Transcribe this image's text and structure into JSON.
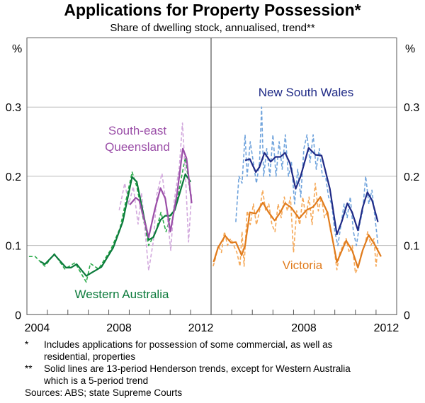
{
  "chart_data": [
    {
      "type": "line",
      "title": "Applications for Property Possession*",
      "subtitle": "Share of dwelling stock, annualised, trend**",
      "ylabel": "%",
      "xlim": [
        2004,
        2013
      ],
      "ylim": [
        0,
        0.4
      ],
      "yticks": [
        "0",
        "0.1",
        "0.2",
        "0.3"
      ],
      "xticks": [
        "2004",
        "2008",
        "2012"
      ],
      "grid": true,
      "series": [
        {
          "name": "Western Australia",
          "style": "trend",
          "color": "#0b7a3b",
          "x": [
            2004.65,
            2004.88,
            2005.34,
            2005.91,
            2006.15,
            2006.43,
            2006.9,
            2007.18,
            2007.64,
            2008.22,
            2008.68,
            2009.14,
            2009.37,
            2009.95,
            2010.18,
            2010.53,
            2010.76,
            2010.99,
            2011.22,
            2011.74,
            2012.0
          ],
          "y": [
            0.077,
            0.073,
            0.087,
            0.068,
            0.068,
            0.073,
            0.056,
            0.061,
            0.069,
            0.097,
            0.134,
            0.199,
            0.192,
            0.108,
            0.112,
            0.137,
            0.143,
            0.143,
            0.151,
            0.203,
            0.192
          ]
        },
        {
          "name": "Western Australia",
          "style": "raw",
          "color": "#2bab4a",
          "x": [
            2004.1,
            2004.4,
            2004.88,
            2005.34,
            2005.85,
            2006.35,
            2006.9,
            2007.1,
            2007.5,
            2008.1,
            2008.55,
            2009.14,
            2009.37,
            2009.95,
            2010.3,
            2010.55,
            2010.8,
            2011.0,
            2011.3,
            2011.74,
            2012.0
          ],
          "y": [
            0.084,
            0.084,
            0.07,
            0.088,
            0.066,
            0.075,
            0.047,
            0.074,
            0.066,
            0.094,
            0.125,
            0.206,
            0.185,
            0.1,
            0.12,
            0.148,
            0.12,
            0.14,
            0.16,
            0.227,
            0.172
          ]
        },
        {
          "name": "South-east Queensland",
          "style": "trend",
          "color": "#9b4fa8",
          "x": [
            2009.03,
            2009.32,
            2009.49,
            2009.95,
            2010.24,
            2010.53,
            2010.76,
            2011.01,
            2011.34,
            2011.62,
            2011.8,
            2012.05
          ],
          "y": [
            0.159,
            0.169,
            0.165,
            0.112,
            0.151,
            0.183,
            0.168,
            0.12,
            0.175,
            0.24,
            0.226,
            0.161
          ]
        },
        {
          "name": "South-east Queensland",
          "style": "raw",
          "color": "#d2a9dd",
          "x": [
            2008.51,
            2008.78,
            2008.98,
            2009.2,
            2009.43,
            2009.6,
            2009.95,
            2010.18,
            2010.35,
            2010.6,
            2010.8,
            2011.03,
            2011.2,
            2011.45,
            2011.6,
            2011.75,
            2011.9,
            2012.05
          ],
          "y": [
            0.151,
            0.19,
            0.16,
            0.185,
            0.131,
            0.176,
            0.064,
            0.106,
            0.174,
            0.204,
            0.16,
            0.093,
            0.165,
            0.214,
            0.277,
            0.2,
            0.105,
            0.177
          ]
        }
      ]
    },
    {
      "type": "line",
      "ylabel": "%",
      "xlim": [
        2004,
        2013
      ],
      "ylim": [
        0,
        0.4
      ],
      "yticks": [
        "0",
        "0.1",
        "0.2",
        "0.3"
      ],
      "xticks": [
        "2008",
        "2012"
      ],
      "grid": true,
      "series": [
        {
          "name": "New South Wales",
          "style": "trend",
          "color": "#1f2a86",
          "x": [
            2005.65,
            2005.88,
            2006.17,
            2006.34,
            2006.59,
            2006.89,
            2007.13,
            2007.36,
            2007.59,
            2007.82,
            2008.1,
            2008.33,
            2008.73,
            2009.07,
            2009.36,
            2009.76,
            2010.1,
            2010.33,
            2010.61,
            2010.84,
            2011.12,
            2011.35,
            2011.58,
            2011.81,
            2012.09
          ],
          "y": [
            0.223,
            0.225,
            0.206,
            0.213,
            0.234,
            0.221,
            0.228,
            0.228,
            0.234,
            0.219,
            0.182,
            0.199,
            0.241,
            0.231,
            0.23,
            0.182,
            0.116,
            0.134,
            0.161,
            0.148,
            0.122,
            0.155,
            0.177,
            0.165,
            0.134
          ]
        },
        {
          "name": "New South Wales",
          "style": "raw",
          "color": "#6fa3dc",
          "x": [
            2005.2,
            2005.35,
            2005.5,
            2005.65,
            2005.75,
            2005.9,
            2006.05,
            2006.2,
            2006.35,
            2006.45,
            2006.55,
            2006.7,
            2006.85,
            2007.0,
            2007.15,
            2007.3,
            2007.45,
            2007.6,
            2007.75,
            2007.9,
            2008.05,
            2008.2,
            2008.35,
            2008.5,
            2008.65,
            2008.8,
            2008.95,
            2009.1,
            2009.25,
            2009.4,
            2009.55,
            2009.7,
            2009.85,
            2010.0,
            2010.15,
            2010.3,
            2010.45,
            2010.6,
            2010.75,
            2010.9,
            2011.05,
            2011.2,
            2011.35,
            2011.5,
            2011.65,
            2011.8,
            2011.95,
            2012.1
          ],
          "y": [
            0.134,
            0.2,
            0.19,
            0.26,
            0.2,
            0.25,
            0.22,
            0.19,
            0.22,
            0.3,
            0.2,
            0.24,
            0.2,
            0.26,
            0.2,
            0.25,
            0.21,
            0.26,
            0.2,
            0.22,
            0.16,
            0.21,
            0.17,
            0.24,
            0.26,
            0.22,
            0.26,
            0.21,
            0.24,
            0.2,
            0.2,
            0.17,
            0.16,
            0.12,
            0.1,
            0.13,
            0.16,
            0.14,
            0.17,
            0.12,
            0.1,
            0.13,
            0.15,
            0.2,
            0.16,
            0.18,
            0.14,
            0.1
          ]
        },
        {
          "name": "Victoria",
          "style": "trend",
          "color": "#e07b1c",
          "x": [
            2004.12,
            2004.34,
            2004.68,
            2004.97,
            2005.2,
            2005.48,
            2005.65,
            2005.88,
            2006.17,
            2006.51,
            2006.79,
            2007.08,
            2007.36,
            2007.59,
            2007.88,
            2008.27,
            2008.62,
            2008.96,
            2009.3,
            2009.64,
            2010.1,
            2010.55,
            2010.84,
            2011.12,
            2011.35,
            2011.64,
            2011.92,
            2012.24
          ],
          "y": [
            0.076,
            0.097,
            0.114,
            0.104,
            0.105,
            0.086,
            0.1,
            0.148,
            0.146,
            0.162,
            0.148,
            0.136,
            0.148,
            0.161,
            0.155,
            0.139,
            0.151,
            0.156,
            0.17,
            0.148,
            0.076,
            0.107,
            0.093,
            0.068,
            0.093,
            0.115,
            0.102,
            0.084
          ]
        },
        {
          "name": "Victoria",
          "style": "raw",
          "color": "#f5a857",
          "x": [
            2004.1,
            2004.2,
            2004.35,
            2004.5,
            2004.65,
            2004.8,
            2004.95,
            2005.1,
            2005.25,
            2005.4,
            2005.5,
            2005.6,
            2005.75,
            2005.9,
            2006.05,
            2006.2,
            2006.35,
            2006.5,
            2006.65,
            2006.8,
            2006.95,
            2007.1,
            2007.25,
            2007.4,
            2007.55,
            2007.7,
            2007.85,
            2008.0,
            2008.15,
            2008.3,
            2008.45,
            2008.6,
            2008.75,
            2008.9,
            2009.05,
            2009.2,
            2009.35,
            2009.5,
            2009.65,
            2009.8,
            2009.95,
            2010.1,
            2010.25,
            2010.4,
            2010.55,
            2010.7,
            2010.85,
            2011.0,
            2011.15,
            2011.3,
            2011.45,
            2011.6,
            2011.75,
            2011.9,
            2012.0,
            2012.1
          ],
          "y": [
            0.07,
            0.08,
            0.1,
            0.09,
            0.12,
            0.1,
            0.11,
            0.1,
            0.09,
            0.07,
            0.12,
            0.07,
            0.15,
            0.13,
            0.16,
            0.13,
            0.15,
            0.18,
            0.15,
            0.16,
            0.13,
            0.12,
            0.16,
            0.14,
            0.17,
            0.15,
            0.17,
            0.09,
            0.15,
            0.13,
            0.17,
            0.14,
            0.17,
            0.13,
            0.19,
            0.15,
            0.17,
            0.14,
            0.15,
            0.12,
            0.1,
            0.065,
            0.09,
            0.1,
            0.11,
            0.09,
            0.1,
            0.06,
            0.07,
            0.09,
            0.1,
            0.12,
            0.1,
            0.11,
            0.07,
            0.1
          ]
        }
      ]
    }
  ],
  "labels": {
    "seq_line1": "South-east",
    "seq_line2": "Queensland",
    "wa": "Western Australia",
    "nsw": "New South Wales",
    "vic": "Victoria"
  },
  "footnotes": {
    "note1_marker": "*",
    "note1_line1": "Includes applications for possession of some commercial, as well as",
    "note1_line2": "residential, properties",
    "note2_marker": "**",
    "note2_line1": "Solid lines are 13-period Henderson trends, except for Western Australia",
    "note2_line2": "which is a 5-period trend",
    "sources": "Sources: ABS; state Supreme Courts"
  }
}
